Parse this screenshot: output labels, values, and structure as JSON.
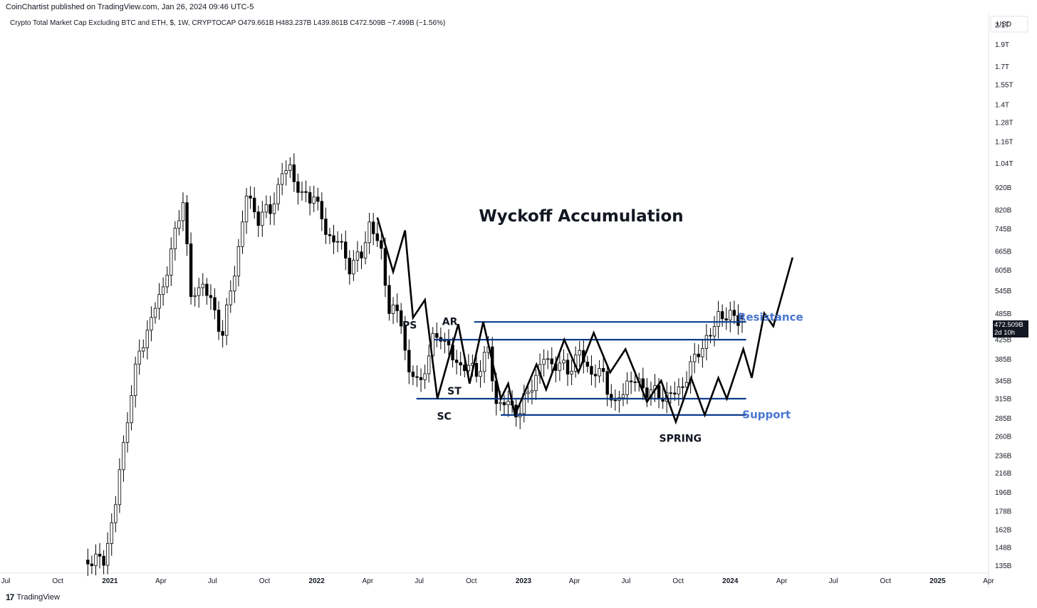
{
  "header": {
    "published": "CoinChartist published on TradingView.com, Jan 26, 2024 09:46 UTC-5",
    "symbol_line": "Crypto Total Market Cap Excluding BTC and ETH, $, 1W, CRYPTOCAP  O479.661B  H483.237B  L439.861B  C472.509B  −7.499B (−1.56%)"
  },
  "price_scale": {
    "currency": "USD",
    "last_price": "472.509B",
    "countdown": "2d 10h"
  },
  "footer": {
    "logo_mark": "17",
    "brand": "TradingView"
  },
  "colors": {
    "level_line": "#0d3c8c",
    "label_blue": "#4a76d1",
    "candle": "#000000",
    "path": "#000000"
  },
  "chart_data": {
    "type": "candlestick",
    "title": "Wyckoff Accumulation",
    "y_scale": "log",
    "ylim": [
      130,
      2200
    ],
    "y_ticks": [
      {
        "label": "2.1T",
        "v": 2100
      },
      {
        "label": "1.9T",
        "v": 1900
      },
      {
        "label": "1.7T",
        "v": 1700
      },
      {
        "label": "1.55T",
        "v": 1550
      },
      {
        "label": "1.4T",
        "v": 1400
      },
      {
        "label": "1.28T",
        "v": 1280
      },
      {
        "label": "1.16T",
        "v": 1160
      },
      {
        "label": "1.04T",
        "v": 1040
      },
      {
        "label": "920B",
        "v": 920
      },
      {
        "label": "820B",
        "v": 820
      },
      {
        "label": "745B",
        "v": 745
      },
      {
        "label": "665B",
        "v": 665
      },
      {
        "label": "605B",
        "v": 605
      },
      {
        "label": "545B",
        "v": 545
      },
      {
        "label": "485B",
        "v": 485
      },
      {
        "label": "425B",
        "v": 425
      },
      {
        "label": "385B",
        "v": 385
      },
      {
        "label": "345B",
        "v": 345
      },
      {
        "label": "315B",
        "v": 315
      },
      {
        "label": "285B",
        "v": 285
      },
      {
        "label": "260B",
        "v": 260
      },
      {
        "label": "236B",
        "v": 236
      },
      {
        "label": "216B",
        "v": 216
      },
      {
        "label": "196B",
        "v": 196
      },
      {
        "label": "178B",
        "v": 178
      },
      {
        "label": "162B",
        "v": 162
      },
      {
        "label": "148B",
        "v": 148
      },
      {
        "label": "135B",
        "v": 135
      }
    ],
    "x_range": [
      "2020-07-01",
      "2025-04-01"
    ],
    "x_ticks": [
      {
        "label": "Jul",
        "date": "2020-07-01",
        "bold": false
      },
      {
        "label": "Oct",
        "date": "2020-10-01",
        "bold": false
      },
      {
        "label": "2021",
        "date": "2021-01-01",
        "bold": true
      },
      {
        "label": "Apr",
        "date": "2021-04-01",
        "bold": false
      },
      {
        "label": "Jul",
        "date": "2021-07-01",
        "bold": false
      },
      {
        "label": "Oct",
        "date": "2021-10-01",
        "bold": false
      },
      {
        "label": "2022",
        "date": "2022-01-01",
        "bold": true
      },
      {
        "label": "Apr",
        "date": "2022-04-01",
        "bold": false
      },
      {
        "label": "Jul",
        "date": "2022-07-01",
        "bold": false
      },
      {
        "label": "Oct",
        "date": "2022-10-01",
        "bold": false
      },
      {
        "label": "2023",
        "date": "2023-01-01",
        "bold": true
      },
      {
        "label": "Apr",
        "date": "2023-04-01",
        "bold": false
      },
      {
        "label": "Jul",
        "date": "2023-07-01",
        "bold": false
      },
      {
        "label": "Oct",
        "date": "2023-10-01",
        "bold": false
      },
      {
        "label": "2024",
        "date": "2024-01-01",
        "bold": true
      },
      {
        "label": "Apr",
        "date": "2024-04-01",
        "bold": false
      },
      {
        "label": "Jul",
        "date": "2024-07-01",
        "bold": false
      },
      {
        "label": "Oct",
        "date": "2024-10-01",
        "bold": false
      },
      {
        "label": "2025",
        "date": "2025-01-01",
        "bold": true
      },
      {
        "label": "Apr",
        "date": "2025-04-01",
        "bold": false
      }
    ],
    "price_anchors": [
      {
        "date": "2020-11-23",
        "close": 140
      },
      {
        "date": "2020-12-21",
        "close": 138
      },
      {
        "date": "2021-01-11",
        "close": 185
      },
      {
        "date": "2021-02-01",
        "close": 290
      },
      {
        "date": "2021-02-22",
        "close": 400
      },
      {
        "date": "2021-03-15",
        "close": 470
      },
      {
        "date": "2021-04-05",
        "close": 560
      },
      {
        "date": "2021-04-26",
        "close": 720
      },
      {
        "date": "2021-05-10",
        "close": 880
      },
      {
        "date": "2021-05-24",
        "close": 520
      },
      {
        "date": "2021-06-14",
        "close": 570
      },
      {
        "date": "2021-06-28",
        "close": 510
      },
      {
        "date": "2021-07-19",
        "close": 440
      },
      {
        "date": "2021-08-09",
        "close": 600
      },
      {
        "date": "2021-08-30",
        "close": 880
      },
      {
        "date": "2021-09-20",
        "close": 790
      },
      {
        "date": "2021-10-11",
        "close": 820
      },
      {
        "date": "2021-11-01",
        "close": 980
      },
      {
        "date": "2021-11-15",
        "close": 1020
      },
      {
        "date": "2021-12-06",
        "close": 870
      },
      {
        "date": "2021-12-27",
        "close": 890
      },
      {
        "date": "2022-01-17",
        "close": 730
      },
      {
        "date": "2022-02-07",
        "close": 700
      },
      {
        "date": "2022-02-28",
        "close": 620
      },
      {
        "date": "2022-03-21",
        "close": 650
      },
      {
        "date": "2022-04-04",
        "close": 770
      },
      {
        "date": "2022-04-25",
        "close": 660
      },
      {
        "date": "2022-05-09",
        "close": 500
      },
      {
        "date": "2022-05-30",
        "close": 470
      },
      {
        "date": "2022-06-13",
        "close": 355
      },
      {
        "date": "2022-07-04",
        "close": 345
      },
      {
        "date": "2022-07-25",
        "close": 420
      },
      {
        "date": "2022-08-08",
        "close": 440
      },
      {
        "date": "2022-08-29",
        "close": 385
      },
      {
        "date": "2022-09-19",
        "close": 370
      },
      {
        "date": "2022-10-10",
        "close": 362
      },
      {
        "date": "2022-10-31",
        "close": 400
      },
      {
        "date": "2022-11-14",
        "close": 310
      },
      {
        "date": "2022-12-05",
        "close": 305
      },
      {
        "date": "2022-12-26",
        "close": 295
      },
      {
        "date": "2023-01-16",
        "close": 340
      },
      {
        "date": "2023-02-06",
        "close": 385
      },
      {
        "date": "2023-02-27",
        "close": 375
      },
      {
        "date": "2023-03-20",
        "close": 365
      },
      {
        "date": "2023-04-10",
        "close": 395
      },
      {
        "date": "2023-05-01",
        "close": 360
      },
      {
        "date": "2023-05-22",
        "close": 355
      },
      {
        "date": "2023-06-12",
        "close": 300
      },
      {
        "date": "2023-07-03",
        "close": 345
      },
      {
        "date": "2023-07-24",
        "close": 340
      },
      {
        "date": "2023-08-14",
        "close": 325
      },
      {
        "date": "2023-09-04",
        "close": 320
      },
      {
        "date": "2023-09-25",
        "close": 322
      },
      {
        "date": "2023-10-16",
        "close": 350
      },
      {
        "date": "2023-11-06",
        "close": 405
      },
      {
        "date": "2023-11-27",
        "close": 430
      },
      {
        "date": "2023-12-11",
        "close": 490
      },
      {
        "date": "2023-12-25",
        "close": 470
      },
      {
        "date": "2024-01-08",
        "close": 482
      },
      {
        "date": "2024-01-22",
        "close": 472.509
      }
    ],
    "last_candle": {
      "date": "2024-01-22",
      "open": 479.661,
      "high": 483.237,
      "low": 439.861,
      "close": 472.509
    },
    "annotations": {
      "levels": [
        {
          "value": 465,
          "from": "2022-10-06",
          "to": "2024-01-29"
        },
        {
          "value": 425,
          "from": "2022-07-28",
          "to": "2024-01-29"
        },
        {
          "value": 315,
          "from": "2022-06-26",
          "to": "2024-01-29"
        },
        {
          "value": 290,
          "from": "2022-11-22",
          "to": "2024-01-29"
        }
      ],
      "path": [
        {
          "date": "2022-04-18",
          "v": 790
        },
        {
          "date": "2022-05-16",
          "v": 600
        },
        {
          "date": "2022-06-06",
          "v": 740
        },
        {
          "date": "2022-06-20",
          "v": 475
        },
        {
          "date": "2022-07-11",
          "v": 520
        },
        {
          "date": "2022-08-02",
          "v": 315
        },
        {
          "date": "2022-09-08",
          "v": 460
        },
        {
          "date": "2022-09-28",
          "v": 340
        },
        {
          "date": "2022-10-22",
          "v": 465
        },
        {
          "date": "2022-11-22",
          "v": 315
        },
        {
          "date": "2022-12-05",
          "v": 340
        },
        {
          "date": "2022-12-17",
          "v": 290
        },
        {
          "date": "2023-01-24",
          "v": 375
        },
        {
          "date": "2023-02-10",
          "v": 330
        },
        {
          "date": "2023-03-14",
          "v": 425
        },
        {
          "date": "2023-04-08",
          "v": 360
        },
        {
          "date": "2023-05-05",
          "v": 440
        },
        {
          "date": "2023-06-03",
          "v": 360
        },
        {
          "date": "2023-06-30",
          "v": 405
        },
        {
          "date": "2023-08-07",
          "v": 310
        },
        {
          "date": "2023-09-01",
          "v": 345
        },
        {
          "date": "2023-09-27",
          "v": 280
        },
        {
          "date": "2023-10-24",
          "v": 350
        },
        {
          "date": "2023-11-17",
          "v": 290
        },
        {
          "date": "2023-12-11",
          "v": 350
        },
        {
          "date": "2023-12-26",
          "v": 315
        },
        {
          "date": "2024-01-24",
          "v": 405
        },
        {
          "date": "2024-02-08",
          "v": 350
        },
        {
          "date": "2024-03-01",
          "v": 486
        },
        {
          "date": "2024-03-17",
          "v": 455
        },
        {
          "date": "2024-04-20",
          "v": 645
        }
      ],
      "labels": [
        {
          "text": "PS",
          "date": "2022-06-14",
          "v": 450,
          "style": "dark"
        },
        {
          "text": "AR",
          "date": "2022-08-24",
          "v": 458,
          "style": "dark"
        },
        {
          "text": "ST",
          "date": "2022-09-01",
          "v": 322,
          "style": "dark"
        },
        {
          "text": "SC",
          "date": "2022-08-14",
          "v": 283,
          "style": "dark"
        },
        {
          "text": "SPRING",
          "date": "2023-10-05",
          "v": 253,
          "style": "dark"
        },
        {
          "text": "Resistance",
          "date": "2024-03-12",
          "v": 468,
          "style": "blue"
        },
        {
          "text": "Support",
          "date": "2024-03-05",
          "v": 285,
          "style": "blue"
        }
      ]
    }
  }
}
